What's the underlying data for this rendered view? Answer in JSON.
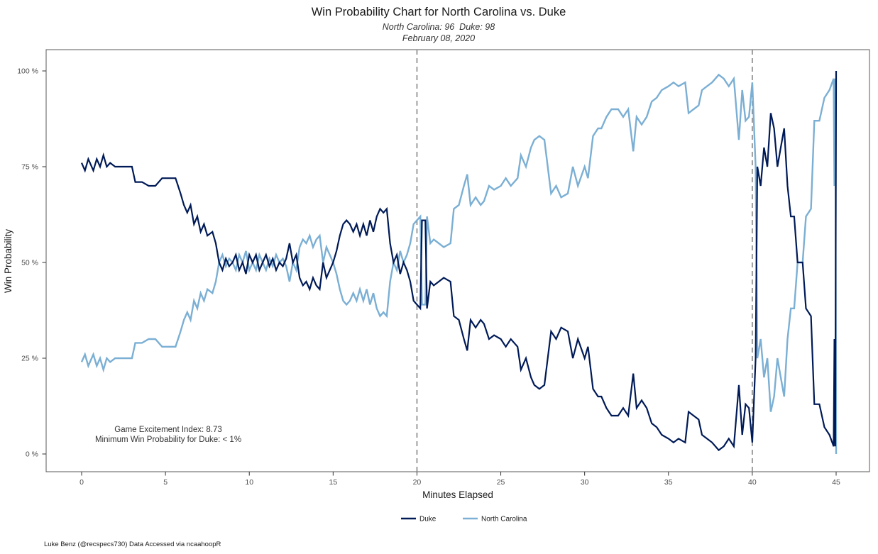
{
  "chart_data": {
    "type": "line",
    "title": "Win Probability Chart for North Carolina vs. Duke",
    "subtitle": "North Carolina: 96  Duke: 98",
    "date": "February 08, 2020",
    "xlabel": "Minutes Elapsed",
    "ylabel": "Win Probability",
    "xlim": [
      0,
      45
    ],
    "ylim": [
      0,
      100
    ],
    "grid": false,
    "legend_position": "bottom",
    "x_ticks": [
      0,
      5,
      10,
      15,
      20,
      25,
      30,
      35,
      40,
      45
    ],
    "y_ticks": [
      0,
      25,
      50,
      75,
      100
    ],
    "y_tick_labels": [
      "0 %",
      "25 %",
      "50 %",
      "75 %",
      "100 %"
    ],
    "reference_lines": [
      20,
      40
    ],
    "reference_line_style": "dashed",
    "reference_line_color": "#8c8c8c",
    "annotations": [
      "Game Excitement Index: 8.73",
      "Minimum Win Probability for Duke: < 1%"
    ],
    "caption": "Luke Benz (@recspecs730) Data Accessed via ncaahoopR",
    "x": [
      0,
      0.2,
      0.4,
      0.7,
      0.9,
      1.1,
      1.3,
      1.5,
      1.7,
      2,
      2.5,
      3,
      3.2,
      3.6,
      4,
      4.4,
      4.8,
      5.2,
      5.6,
      5.9,
      6.1,
      6.3,
      6.5,
      6.7,
      6.9,
      7.1,
      7.3,
      7.5,
      7.8,
      8,
      8.2,
      8.4,
      8.6,
      8.8,
      9,
      9.2,
      9.4,
      9.6,
      9.8,
      10,
      10.2,
      10.4,
      10.6,
      10.8,
      11,
      11.2,
      11.4,
      11.6,
      11.8,
      12,
      12.2,
      12.4,
      12.6,
      12.8,
      13,
      13.2,
      13.4,
      13.6,
      13.8,
      14,
      14.2,
      14.4,
      14.6,
      14.8,
      15,
      15.2,
      15.4,
      15.6,
      15.8,
      16,
      16.2,
      16.4,
      16.6,
      16.8,
      17,
      17.2,
      17.4,
      17.6,
      17.8,
      18,
      18.2,
      18.4,
      18.6,
      18.8,
      19,
      19.2,
      19.4,
      19.6,
      19.8,
      20,
      20.2,
      20.3,
      20.5,
      20.6,
      20.8,
      21,
      21.3,
      21.6,
      22,
      22.2,
      22.5,
      22.8,
      23,
      23.2,
      23.5,
      23.8,
      24,
      24.3,
      24.6,
      25,
      25.3,
      25.6,
      26,
      26.2,
      26.5,
      26.8,
      27,
      27.3,
      27.6,
      28,
      28.3,
      28.6,
      29,
      29.3,
      29.6,
      30,
      30.2,
      30.5,
      30.8,
      31,
      31.3,
      31.6,
      32,
      32.3,
      32.6,
      32.9,
      33.1,
      33.4,
      33.7,
      34,
      34.3,
      34.6,
      35,
      35.3,
      35.6,
      36,
      36.2,
      36.5,
      36.8,
      37,
      37.3,
      37.6,
      38,
      38.3,
      38.6,
      38.9,
      39.2,
      39.4,
      39.6,
      39.8,
      40,
      40.2,
      40.3,
      40.5,
      40.7,
      40.9,
      41.1,
      41.3,
      41.5,
      41.7,
      41.9,
      42.1,
      42.3,
      42.5,
      42.7,
      43,
      43.2,
      43.5,
      43.7,
      44,
      44.3,
      44.6,
      44.85,
      44.9,
      44.95,
      45
    ],
    "series": [
      {
        "name": "Duke",
        "color": "#001A57",
        "y": [
          76,
          74,
          77,
          74,
          77,
          75,
          78,
          75,
          76,
          75,
          75,
          75,
          71,
          71,
          70,
          70,
          72,
          72,
          72,
          68,
          65,
          63,
          65,
          60,
          62,
          58,
          60,
          57,
          58,
          55,
          50,
          48,
          51,
          49,
          50,
          52,
          48,
          50,
          47,
          52,
          50,
          52,
          48,
          50,
          52,
          49,
          51,
          48,
          50,
          49,
          51,
          55,
          50,
          52,
          46,
          44,
          45,
          43,
          46,
          44,
          43,
          50,
          46,
          48,
          50,
          53,
          57,
          60,
          61,
          60,
          58,
          60,
          57,
          60,
          57,
          61,
          58,
          62,
          64,
          63,
          64,
          55,
          50,
          52,
          47,
          50,
          48,
          45,
          40,
          39,
          38,
          61,
          61,
          38,
          45,
          44,
          45,
          46,
          45,
          36,
          35,
          30,
          27,
          35,
          33,
          35,
          34,
          30,
          31,
          30,
          28,
          30,
          28,
          22,
          25,
          20,
          18,
          17,
          18,
          32,
          30,
          33,
          32,
          25,
          30,
          25,
          28,
          17,
          15,
          15,
          12,
          10,
          10,
          12,
          10,
          21,
          12,
          14,
          12,
          8,
          7,
          5,
          4,
          3,
          4,
          3,
          11,
          10,
          9,
          5,
          4,
          3,
          1,
          2,
          4,
          2,
          18,
          5,
          13,
          12,
          3,
          25,
          75,
          70,
          80,
          75,
          89,
          85,
          75,
          80,
          85,
          70,
          62,
          62,
          50,
          50,
          38,
          36,
          13,
          13,
          7,
          5,
          2,
          30,
          2,
          100
        ]
      },
      {
        "name": "North Carolina",
        "color": "#7BAFD4",
        "y": [
          24,
          26,
          23,
          26,
          23,
          25,
          22,
          25,
          24,
          25,
          25,
          25,
          29,
          29,
          30,
          30,
          28,
          28,
          28,
          32,
          35,
          37,
          35,
          40,
          38,
          42,
          40,
          43,
          42,
          45,
          50,
          52,
          49,
          51,
          50,
          48,
          52,
          50,
          53,
          48,
          50,
          48,
          52,
          50,
          48,
          51,
          49,
          52,
          50,
          51,
          49,
          45,
          50,
          48,
          54,
          56,
          55,
          57,
          54,
          56,
          57,
          50,
          54,
          52,
          50,
          47,
          43,
          40,
          39,
          40,
          42,
          40,
          43,
          40,
          43,
          39,
          42,
          38,
          36,
          37,
          36,
          45,
          50,
          48,
          53,
          50,
          52,
          55,
          60,
          61,
          62,
          39,
          39,
          62,
          55,
          56,
          55,
          54,
          55,
          64,
          65,
          70,
          73,
          65,
          67,
          65,
          66,
          70,
          69,
          70,
          72,
          70,
          72,
          78,
          75,
          80,
          82,
          83,
          82,
          68,
          70,
          67,
          68,
          75,
          70,
          75,
          72,
          83,
          85,
          85,
          88,
          90,
          90,
          88,
          90,
          79,
          88,
          86,
          88,
          92,
          93,
          95,
          96,
          97,
          96,
          97,
          89,
          90,
          91,
          95,
          96,
          97,
          99,
          98,
          96,
          98,
          82,
          95,
          87,
          88,
          97,
          75,
          25,
          30,
          20,
          25,
          11,
          15,
          25,
          20,
          15,
          30,
          38,
          38,
          50,
          50,
          62,
          64,
          87,
          87,
          93,
          95,
          98,
          70,
          98,
          0
        ]
      }
    ]
  }
}
